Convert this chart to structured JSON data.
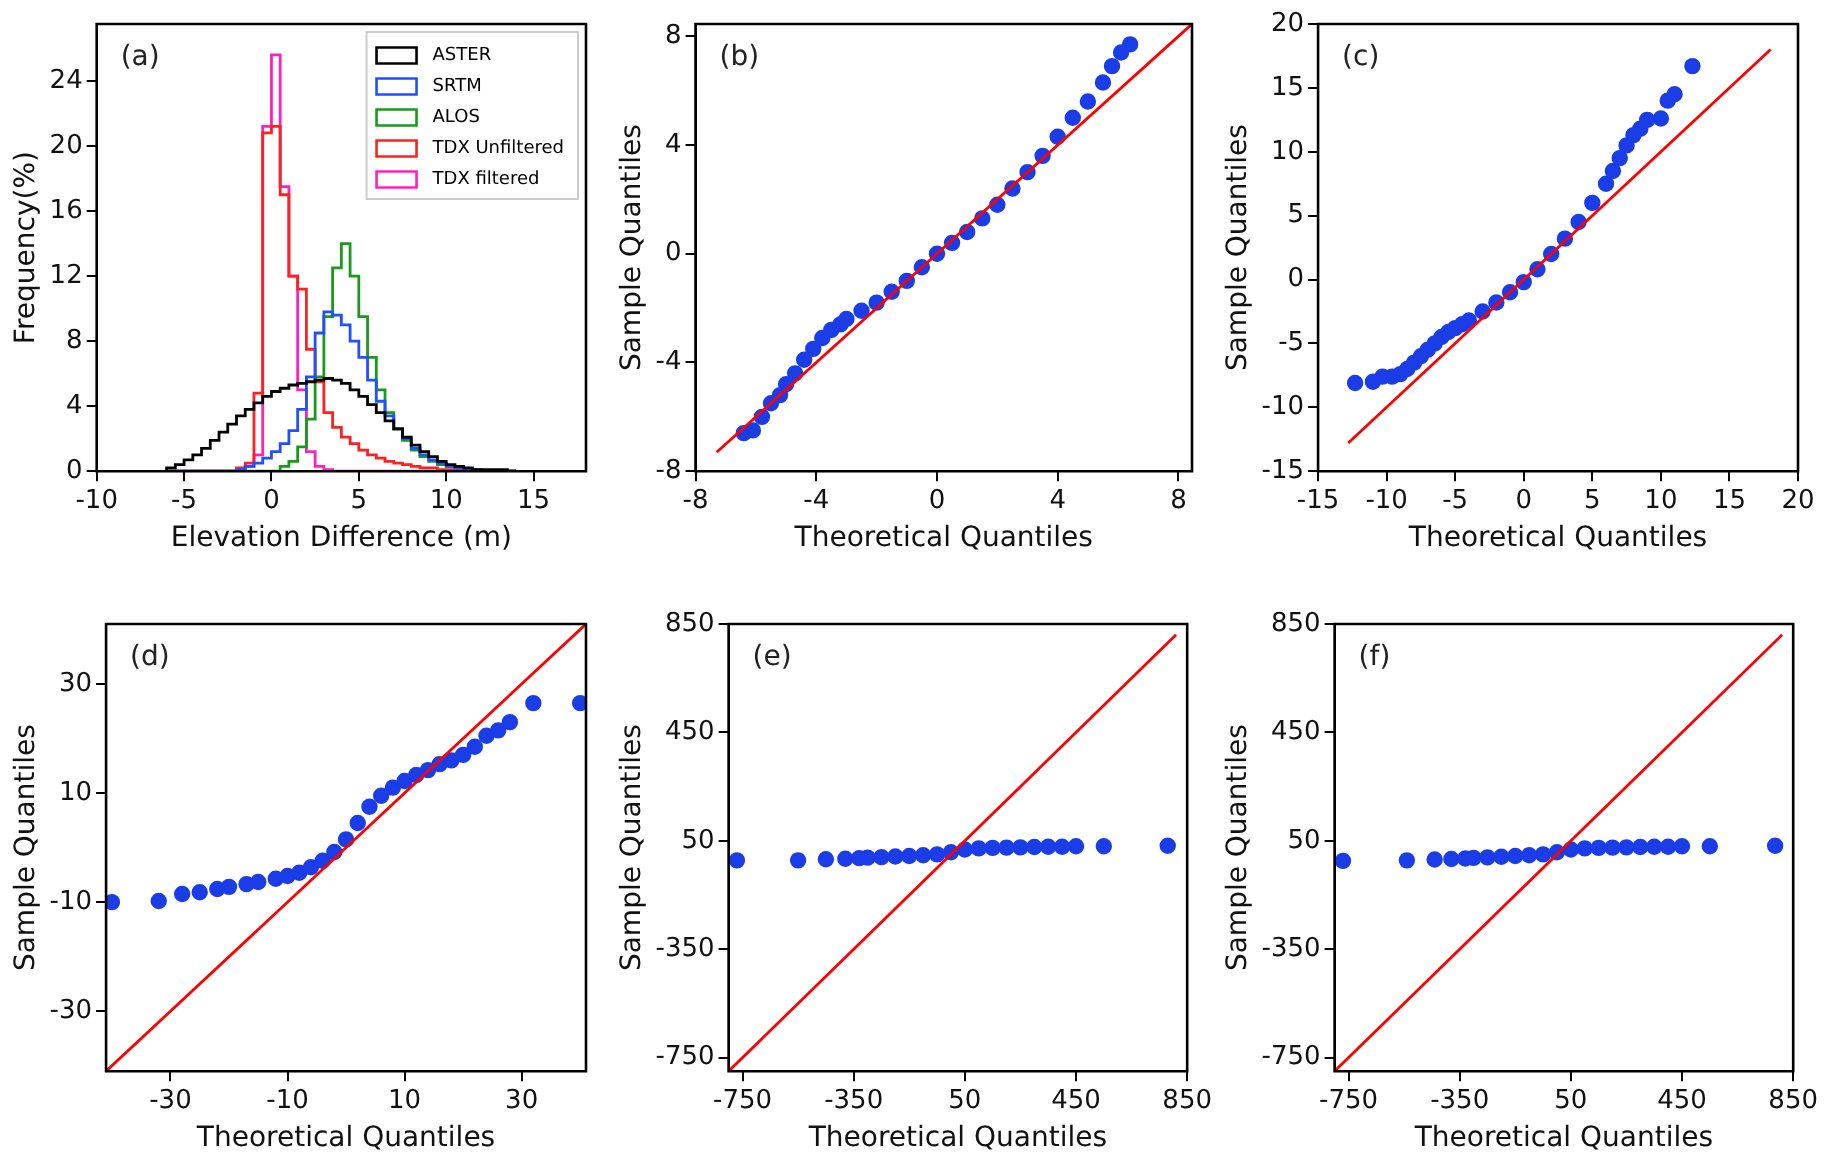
{
  "chart_data": [
    {
      "type": "histogram",
      "xlabel": "Elevation Difference (m)",
      "ylabel": "Frequency(%)",
      "annotations": [
        "(a)"
      ],
      "legend": "top right",
      "grid": false,
      "xlim": [
        -10,
        18
      ],
      "xticks": [
        -10,
        -5,
        0,
        5,
        10,
        15
      ],
      "ylim": [
        0,
        27.5
      ],
      "yticks": [
        0,
        4,
        8,
        12,
        16,
        20,
        24
      ],
      "bins": [
        -6,
        -5.5,
        -5,
        -4.5,
        -4,
        -3.5,
        -3,
        -2.5,
        -2,
        -1.5,
        -1,
        -0.5,
        0,
        0.5,
        1,
        1.5,
        2,
        2.5,
        3,
        3.5,
        4,
        4.5,
        5,
        5.5,
        6,
        6.5,
        7,
        7.5,
        8,
        8.5,
        9,
        9.5,
        10,
        10.5,
        11,
        11.5,
        12,
        12.5,
        13,
        13.5,
        14
      ],
      "series": [
        {
          "name": "ASTER",
          "color": "#000000",
          "values": [
            0.2,
            0.4,
            0.7,
            1.0,
            1.4,
            1.9,
            2.4,
            2.9,
            3.4,
            3.8,
            4.2,
            4.6,
            4.9,
            5.1,
            5.3,
            5.4,
            5.5,
            5.6,
            5.7,
            5.6,
            5.4,
            5.0,
            4.6,
            4.1,
            3.6,
            3.1,
            2.6,
            2.1,
            1.6,
            1.2,
            0.9,
            0.6,
            0.4,
            0.3,
            0.2,
            0.1,
            0.1,
            0.1,
            0.1,
            0
          ]
        },
        {
          "name": "SRTM",
          "color": "#1f4fff",
          "values": [
            0,
            0,
            0,
            0,
            0,
            0,
            0,
            0,
            0.1,
            0.3,
            0.5,
            0.8,
            1.2,
            1.7,
            2.5,
            3.8,
            5.8,
            8.5,
            9.8,
            9.6,
            9.0,
            8.0,
            7.0,
            5.6,
            4.3,
            3.4,
            2.6,
            2.0,
            1.4,
            1.0,
            0.7,
            0.5,
            0.3,
            0.2,
            0.1,
            0.1,
            0,
            0,
            0,
            0
          ]
        },
        {
          "name": "ALOS",
          "color": "#1a9a1a",
          "values": [
            0,
            0,
            0,
            0,
            0,
            0,
            0,
            0,
            0,
            0,
            0,
            0,
            0,
            0.3,
            0.6,
            1.5,
            3.2,
            5.8,
            9.5,
            12.5,
            14,
            12,
            9.5,
            7,
            5,
            3.6,
            2.6,
            1.9,
            1.3,
            0.9,
            0.6,
            0.4,
            0.3,
            0.2,
            0.1,
            0.1,
            0,
            0,
            0,
            0
          ]
        },
        {
          "name": "TDX Unfiltered",
          "color": "#ff2020",
          "values": [
            0,
            0,
            0,
            0,
            0,
            0,
            0,
            0,
            0.2,
            0.5,
            4.8,
            20.8,
            21.2,
            17,
            12,
            11.2,
            7.5,
            5.5,
            3.6,
            2.7,
            2.1,
            1.7,
            1.3,
            1.0,
            0.8,
            0.6,
            0.5,
            0.4,
            0.3,
            0.2,
            0.2,
            0.1,
            0.1,
            0.1,
            0,
            0,
            0,
            0,
            0,
            0
          ]
        },
        {
          "name": "TDX filtered",
          "color": "#ff20c0",
          "values": [
            0,
            0,
            0,
            0,
            0,
            0,
            0,
            0,
            0.1,
            0.3,
            1.0,
            21.2,
            25.6,
            17.5,
            12,
            5,
            1.2,
            0.3,
            0.1,
            0,
            0,
            0,
            0,
            0,
            0,
            0,
            0,
            0,
            0,
            0,
            0,
            0,
            0,
            0,
            0,
            0,
            0,
            0,
            0,
            0
          ]
        }
      ]
    },
    {
      "type": "scatter",
      "xlabel": "Theoretical Quantiles",
      "ylabel": "Sample Quantiles",
      "annotations": [
        "(b)"
      ],
      "grid": false,
      "xlim": [
        -8,
        8.45
      ],
      "xticks": [
        -8,
        -4,
        0,
        4,
        8
      ],
      "ylim": [
        -8,
        8.45
      ],
      "yticks": [
        -8,
        -4,
        0,
        4,
        8
      ],
      "series": [
        {
          "type": "scatter",
          "marker": "circle",
          "color": "#1a3de8",
          "x": [
            -6.4,
            -6.1,
            -5.8,
            -5.5,
            -5.2,
            -5,
            -4.7,
            -4.4,
            -4.1,
            -3.8,
            -3.5,
            -3.2,
            -3,
            -2.5,
            -2,
            -1.5,
            -1,
            -0.5,
            0,
            0.5,
            1,
            1.5,
            2,
            2.5,
            3,
            3.5,
            4,
            4.5,
            5,
            5.5,
            5.8,
            6.1,
            6.4
          ],
          "values": [
            -6.6,
            -6.5,
            -6,
            -5.5,
            -5.2,
            -4.8,
            -4.4,
            -3.9,
            -3.5,
            -3.1,
            -2.8,
            -2.6,
            -2.4,
            -2.1,
            -1.8,
            -1.4,
            -1,
            -0.5,
            0,
            0.4,
            0.8,
            1.3,
            1.8,
            2.4,
            3,
            3.6,
            4.3,
            5,
            5.6,
            6.3,
            6.9,
            7.4,
            7.7
          ]
        },
        {
          "type": "line",
          "marker": "none",
          "color": "#ff0000",
          "x": [
            -7.3,
            8.45
          ],
          "values": [
            -7.3,
            8.45
          ]
        }
      ]
    },
    {
      "type": "scatter",
      "xlabel": "Theoretical Quantiles",
      "ylabel": "Sample Quantiles",
      "annotations": [
        "(c)"
      ],
      "grid": false,
      "xlim": [
        -15,
        20
      ],
      "xticks": [
        -15,
        -10,
        -5,
        0,
        5,
        10,
        15,
        20
      ],
      "ylim": [
        -15,
        20
      ],
      "yticks": [
        -15,
        -10,
        -5,
        0,
        5,
        10,
        15,
        20
      ],
      "series": [
        {
          "type": "scatter",
          "marker": "circle",
          "color": "#1a3de8",
          "x": [
            -12.3,
            -11,
            -10.3,
            -9.6,
            -9,
            -8.5,
            -8,
            -7.5,
            -7,
            -6.5,
            -6,
            -5.5,
            -5,
            -4.5,
            -4,
            -3,
            -2,
            -1,
            0,
            1,
            2,
            3,
            4,
            5,
            6,
            6.5,
            7,
            7.5,
            8,
            8.5,
            9,
            10,
            10.5,
            11,
            12.3
          ],
          "values": [
            -8.1,
            -8,
            -7.6,
            -7.6,
            -7.4,
            -7,
            -6.5,
            -6,
            -5.5,
            -5,
            -4.5,
            -4.1,
            -3.8,
            -3.5,
            -3.2,
            -2.5,
            -1.8,
            -1,
            -0.2,
            0.8,
            2,
            3.2,
            4.5,
            6,
            7.5,
            8.5,
            9.5,
            10.5,
            11.3,
            11.8,
            12.5,
            12.6,
            14,
            14.5,
            16.7
          ]
        },
        {
          "type": "line",
          "marker": "none",
          "color": "#ff0000",
          "x": [
            -12.8,
            18
          ],
          "values": [
            -12.8,
            18
          ]
        }
      ]
    },
    {
      "type": "scatter",
      "xlabel": "Theoretical Quantiles",
      "ylabel": "Sample Quantiles",
      "annotations": [
        "(d)"
      ],
      "grid": false,
      "xlim": [
        -41,
        41
      ],
      "xticks": [
        -30,
        -10,
        10,
        30
      ],
      "ylim": [
        -41,
        41
      ],
      "yticks": [
        -30,
        -10,
        10,
        30
      ],
      "series": [
        {
          "type": "scatter",
          "marker": "circle",
          "color": "#1a3de8",
          "x": [
            -40,
            -32,
            -28,
            -25,
            -22,
            -20,
            -17,
            -15,
            -12,
            -10,
            -8,
            -6,
            -4,
            -2,
            0,
            2,
            4,
            6,
            8,
            10,
            12,
            14,
            16,
            18,
            20,
            22,
            24,
            26,
            28,
            32,
            40
          ],
          "values": [
            -10,
            -9.8,
            -8.5,
            -8.2,
            -7.6,
            -7.2,
            -6.7,
            -6.3,
            -5.7,
            -5.2,
            -4.6,
            -3.6,
            -2.4,
            -0.8,
            1.5,
            4.5,
            7.5,
            9.5,
            11,
            12.2,
            13.3,
            14.2,
            15.3,
            16,
            17,
            18.5,
            20.5,
            21.5,
            23,
            26.5,
            26.5
          ]
        },
        {
          "type": "line",
          "marker": "none",
          "color": "#ff0000",
          "x": [
            -41,
            41
          ],
          "values": [
            -41,
            41
          ]
        }
      ]
    },
    {
      "type": "scatter",
      "xlabel": "Theoretical Quantiles",
      "ylabel": "Sample Quantiles",
      "annotations": [
        "(e)"
      ],
      "grid": false,
      "xlim": [
        -800,
        850
      ],
      "xticks": [
        -750,
        -350,
        50,
        450,
        850
      ],
      "ylim": [
        -800,
        850
      ],
      "yticks": [
        -750,
        -350,
        50,
        450,
        850
      ],
      "series": [
        {
          "type": "scatter",
          "marker": "circle",
          "color": "#1a3de8",
          "x": [
            -770,
            -550,
            -450,
            -380,
            -330,
            -300,
            -250,
            -200,
            -150,
            -100,
            -50,
            0,
            50,
            100,
            150,
            200,
            250,
            300,
            350,
            400,
            450,
            550,
            780
          ],
          "values": [
            -22,
            -22,
            -18,
            -16,
            -14,
            -12,
            -10,
            -8,
            -6,
            -3,
            0,
            8,
            18,
            22,
            24,
            25,
            26,
            27,
            28,
            28,
            30,
            30,
            32
          ]
        },
        {
          "type": "line",
          "marker": "none",
          "color": "#ff0000",
          "x": [
            -800,
            810
          ],
          "values": [
            -800,
            810
          ]
        }
      ]
    },
    {
      "type": "scatter",
      "xlabel": "Theoretical Quantiles",
      "ylabel": "Sample Quantiles",
      "annotations": [
        "(f)"
      ],
      "grid": false,
      "xlim": [
        -800,
        850
      ],
      "xticks": [
        -750,
        -350,
        50,
        450,
        850
      ],
      "ylim": [
        -800,
        850
      ],
      "yticks": [
        -750,
        -350,
        50,
        450,
        850
      ],
      "series": [
        {
          "type": "scatter",
          "marker": "circle",
          "color": "#1a3de8",
          "x": [
            -770,
            -540,
            -440,
            -380,
            -330,
            -300,
            -250,
            -200,
            -150,
            -100,
            -50,
            0,
            50,
            100,
            150,
            200,
            250,
            300,
            350,
            400,
            450,
            550,
            785
          ],
          "values": [
            -24,
            -22,
            -19,
            -17,
            -15,
            -13,
            -11,
            -9,
            -6,
            -3,
            0,
            8,
            18,
            22,
            24,
            25,
            26,
            27,
            28,
            28,
            30,
            30,
            32
          ]
        },
        {
          "type": "line",
          "marker": "none",
          "color": "#ff0000",
          "x": [
            -800,
            810
          ],
          "values": [
            -800,
            810
          ]
        }
      ]
    }
  ]
}
